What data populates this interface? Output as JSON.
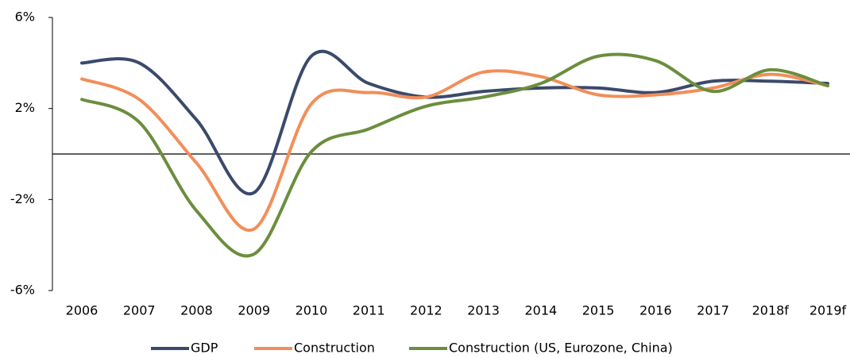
{
  "chart_data": {
    "type": "line",
    "categories": [
      "2006",
      "2007",
      "2008",
      "2009",
      "2010",
      "2011",
      "2012",
      "2013",
      "2014",
      "2015",
      "2016",
      "2017",
      "2018f",
      "2019f"
    ],
    "series": [
      {
        "name": "GDP",
        "color": "#3b4a6b",
        "values": [
          4.0,
          4.0,
          1.5,
          -1.7,
          4.3,
          3.1,
          2.5,
          2.75,
          2.9,
          2.9,
          2.7,
          3.2,
          3.2,
          3.1
        ]
      },
      {
        "name": "Construction",
        "color": "#f28e5a",
        "values": [
          3.3,
          2.4,
          -0.4,
          -3.3,
          2.2,
          2.7,
          2.5,
          3.6,
          3.4,
          2.6,
          2.6,
          2.9,
          3.5,
          3.0
        ]
      },
      {
        "name": "Construction (US, Eurozone, China)",
        "color": "#6b8e3e",
        "values": [
          2.4,
          1.4,
          -2.5,
          -4.4,
          0.1,
          1.1,
          2.1,
          2.5,
          3.1,
          4.3,
          4.1,
          2.75,
          3.7,
          3.0
        ]
      }
    ],
    "ylim": [
      -6,
      6
    ],
    "yticks": [
      {
        "value": -6,
        "label": "-6%"
      },
      {
        "value": -2,
        "label": "-2%"
      },
      {
        "value": 2,
        "label": "2%"
      },
      {
        "value": 6,
        "label": "6%"
      }
    ],
    "legend": "bottom"
  }
}
